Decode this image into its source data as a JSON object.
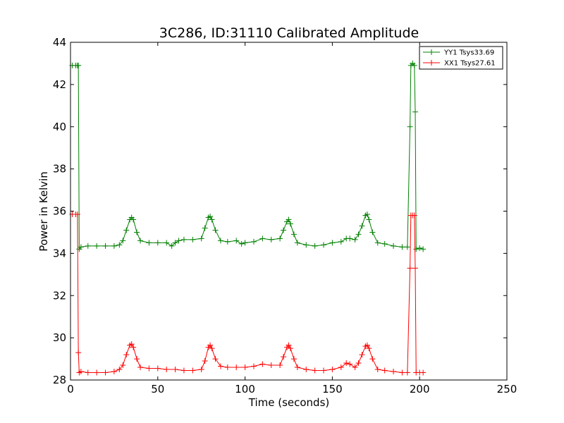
{
  "chart_data": {
    "type": "line",
    "title": "3C286, ID:31110 Calibrated Amplitude",
    "xlabel": "Time (seconds)",
    "ylabel": "Power in Kelvin",
    "xlim": [
      0,
      250
    ],
    "ylim": [
      28,
      44
    ],
    "xticks": [
      0,
      50,
      100,
      150,
      200,
      250
    ],
    "yticks": [
      28,
      30,
      32,
      34,
      36,
      38,
      40,
      42,
      44
    ],
    "grid": false,
    "legend": {
      "placement": "top-right"
    },
    "series": [
      {
        "name": "YY1 Tsys33.69",
        "color": "#008000",
        "marker": "+",
        "points": [
          [
            1,
            42.9
          ],
          [
            3,
            42.9
          ],
          [
            4,
            42.9
          ],
          [
            4.5,
            42.9
          ],
          [
            5,
            34.2
          ],
          [
            6,
            34.3
          ],
          [
            10,
            34.35
          ],
          [
            15,
            34.35
          ],
          [
            20,
            34.35
          ],
          [
            25,
            34.35
          ],
          [
            28,
            34.4
          ],
          [
            30,
            34.6
          ],
          [
            32,
            35.1
          ],
          [
            34,
            35.6
          ],
          [
            35,
            35.7
          ],
          [
            36,
            35.6
          ],
          [
            38,
            35.0
          ],
          [
            40,
            34.6
          ],
          [
            45,
            34.5
          ],
          [
            50,
            34.5
          ],
          [
            55,
            34.5
          ],
          [
            58,
            34.35
          ],
          [
            60,
            34.5
          ],
          [
            62,
            34.6
          ],
          [
            65,
            34.65
          ],
          [
            70,
            34.65
          ],
          [
            75,
            34.7
          ],
          [
            77,
            35.2
          ],
          [
            79,
            35.7
          ],
          [
            80,
            35.75
          ],
          [
            81,
            35.6
          ],
          [
            83,
            35.1
          ],
          [
            86,
            34.6
          ],
          [
            90,
            34.55
          ],
          [
            95,
            34.6
          ],
          [
            98,
            34.45
          ],
          [
            100,
            34.5
          ],
          [
            105,
            34.55
          ],
          [
            110,
            34.7
          ],
          [
            115,
            34.65
          ],
          [
            120,
            34.7
          ],
          [
            122,
            35.1
          ],
          [
            124,
            35.5
          ],
          [
            125,
            35.6
          ],
          [
            126,
            35.4
          ],
          [
            128,
            34.9
          ],
          [
            130,
            34.5
          ],
          [
            135,
            34.4
          ],
          [
            140,
            34.35
          ],
          [
            145,
            34.4
          ],
          [
            150,
            34.5
          ],
          [
            155,
            34.55
          ],
          [
            158,
            34.7
          ],
          [
            160,
            34.7
          ],
          [
            163,
            34.65
          ],
          [
            165,
            34.9
          ],
          [
            167,
            35.3
          ],
          [
            169,
            35.8
          ],
          [
            170,
            35.85
          ],
          [
            171,
            35.6
          ],
          [
            173,
            35.0
          ],
          [
            176,
            34.5
          ],
          [
            180,
            34.45
          ],
          [
            185,
            34.35
          ],
          [
            190,
            34.3
          ],
          [
            193,
            34.3
          ],
          [
            194.5,
            40.0
          ],
          [
            195,
            42.9
          ],
          [
            196,
            43.0
          ],
          [
            197,
            42.9
          ],
          [
            197.5,
            40.7
          ],
          [
            198,
            34.2
          ],
          [
            200,
            34.25
          ],
          [
            202,
            34.2
          ]
        ]
      },
      {
        "name": "XX1 Tsys27.61",
        "color": "#ff0000",
        "marker": "+",
        "points": [
          [
            1,
            35.85
          ],
          [
            3,
            35.85
          ],
          [
            4,
            35.85
          ],
          [
            4.5,
            29.3
          ],
          [
            5,
            28.35
          ],
          [
            6,
            28.4
          ],
          [
            10,
            28.35
          ],
          [
            15,
            28.35
          ],
          [
            20,
            28.35
          ],
          [
            25,
            28.4
          ],
          [
            28,
            28.5
          ],
          [
            30,
            28.7
          ],
          [
            32,
            29.2
          ],
          [
            34,
            29.65
          ],
          [
            35,
            29.7
          ],
          [
            36,
            29.55
          ],
          [
            38,
            29.0
          ],
          [
            40,
            28.6
          ],
          [
            45,
            28.55
          ],
          [
            50,
            28.55
          ],
          [
            55,
            28.5
          ],
          [
            60,
            28.5
          ],
          [
            65,
            28.45
          ],
          [
            70,
            28.45
          ],
          [
            75,
            28.5
          ],
          [
            77,
            28.9
          ],
          [
            79,
            29.55
          ],
          [
            80,
            29.65
          ],
          [
            81,
            29.5
          ],
          [
            83,
            29.0
          ],
          [
            86,
            28.65
          ],
          [
            90,
            28.6
          ],
          [
            95,
            28.6
          ],
          [
            100,
            28.6
          ],
          [
            105,
            28.65
          ],
          [
            110,
            28.75
          ],
          [
            115,
            28.7
          ],
          [
            120,
            28.7
          ],
          [
            122,
            29.1
          ],
          [
            124,
            29.55
          ],
          [
            125,
            29.65
          ],
          [
            126,
            29.5
          ],
          [
            128,
            29.0
          ],
          [
            130,
            28.6
          ],
          [
            135,
            28.5
          ],
          [
            140,
            28.45
          ],
          [
            145,
            28.45
          ],
          [
            150,
            28.5
          ],
          [
            155,
            28.6
          ],
          [
            158,
            28.8
          ],
          [
            160,
            28.75
          ],
          [
            163,
            28.6
          ],
          [
            165,
            28.8
          ],
          [
            167,
            29.2
          ],
          [
            169,
            29.6
          ],
          [
            170,
            29.65
          ],
          [
            171,
            29.5
          ],
          [
            173,
            29.0
          ],
          [
            176,
            28.5
          ],
          [
            180,
            28.45
          ],
          [
            185,
            28.4
          ],
          [
            190,
            28.35
          ],
          [
            193,
            28.35
          ],
          [
            194.5,
            33.3
          ],
          [
            195,
            35.8
          ],
          [
            196,
            35.8
          ],
          [
            197,
            35.8
          ],
          [
            197.5,
            33.3
          ],
          [
            198,
            28.35
          ],
          [
            200,
            28.35
          ],
          [
            202,
            28.35
          ]
        ]
      }
    ]
  }
}
